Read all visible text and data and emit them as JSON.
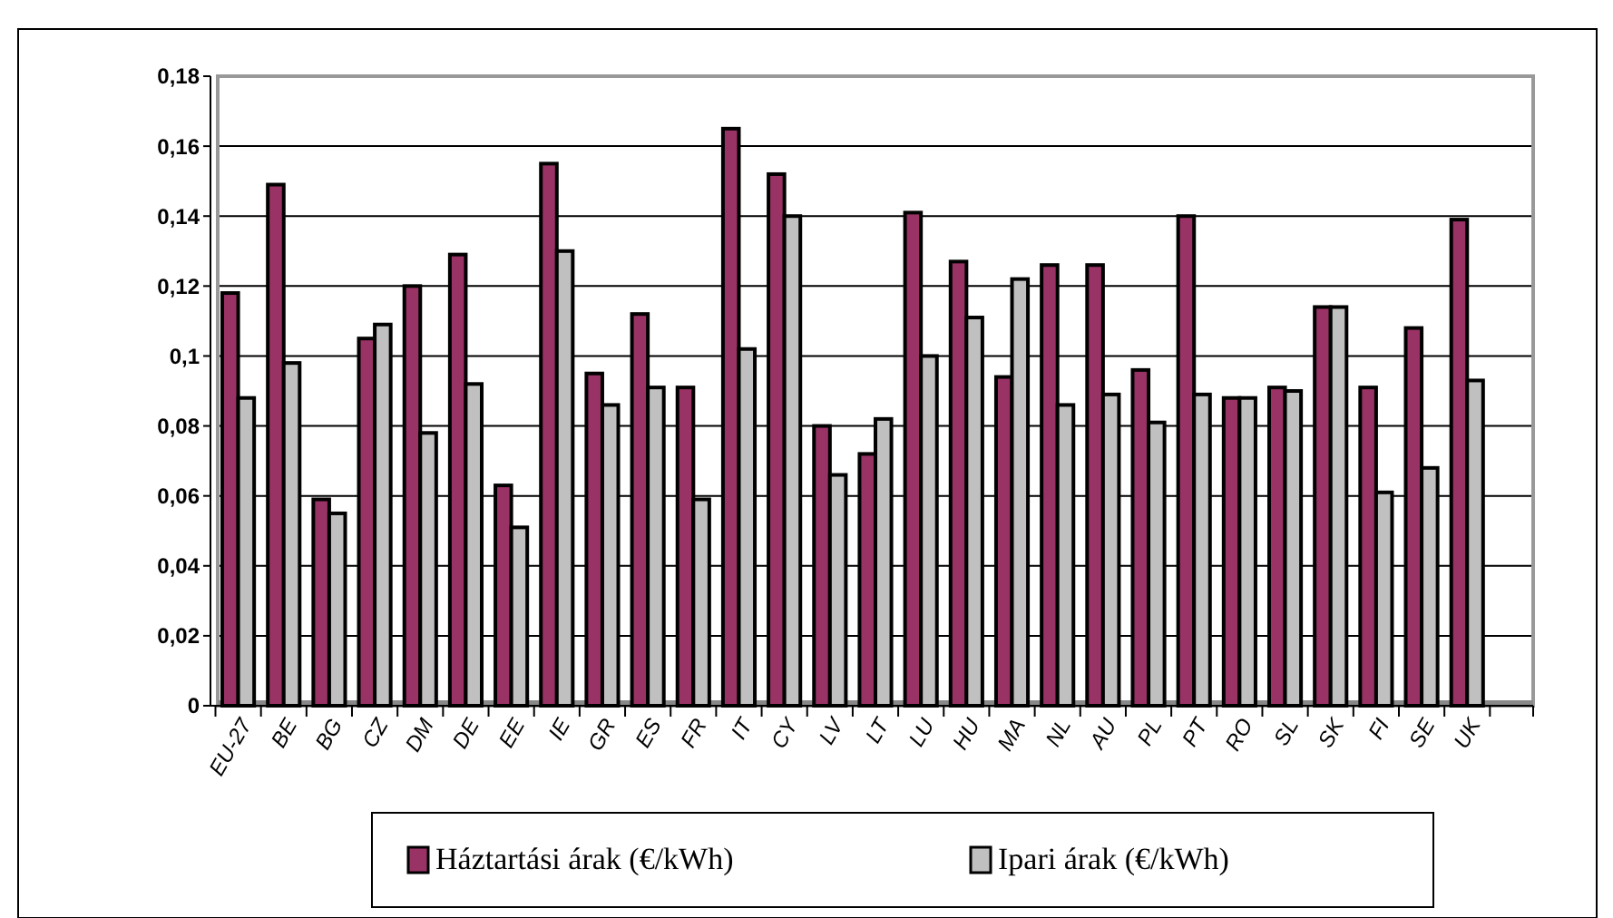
{
  "chart_data": {
    "type": "bar",
    "categories": [
      "EU-27",
      "BE",
      "BG",
      "CZ",
      "DM",
      "DE",
      "EE",
      "IE",
      "GR",
      "ES",
      "FR",
      "IT",
      "CY",
      "LV",
      "LT",
      "LU",
      "HU",
      "MA",
      "NL",
      "AU",
      "PL",
      "PT",
      "RO",
      "SL",
      "SK",
      "FI",
      "SE",
      "UK",
      null
    ],
    "series": [
      {
        "name": "Háztartási árak (€/kWh)",
        "color": "#993366",
        "values": [
          0.118,
          0.149,
          0.059,
          0.105,
          0.12,
          0.129,
          0.063,
          0.155,
          0.095,
          0.112,
          0.091,
          0.165,
          0.152,
          0.08,
          0.072,
          0.141,
          0.127,
          0.094,
          0.126,
          0.126,
          0.096,
          0.14,
          0.088,
          0.091,
          0.114,
          0.091,
          0.108,
          0.139,
          null
        ]
      },
      {
        "name": "Ipari árak (€/kWh)",
        "color": "#c0c0c0",
        "values": [
          0.088,
          0.098,
          0.055,
          0.109,
          0.078,
          0.092,
          0.051,
          0.13,
          0.086,
          0.091,
          0.059,
          0.102,
          0.14,
          0.066,
          0.082,
          0.1,
          0.111,
          0.122,
          0.086,
          0.089,
          0.081,
          0.089,
          0.088,
          0.09,
          0.114,
          0.061,
          0.068,
          0.093,
          null
        ]
      }
    ],
    "ylim": [
      0,
      0.18
    ],
    "yticks": [
      {
        "value": 0,
        "label": "0"
      },
      {
        "value": 0.02,
        "label": "0,02"
      },
      {
        "value": 0.04,
        "label": "0,04"
      },
      {
        "value": 0.06,
        "label": "0,06"
      },
      {
        "value": 0.08,
        "label": "0,08"
      },
      {
        "value": 0.1,
        "label": "0,1"
      },
      {
        "value": 0.12,
        "label": "0,12"
      },
      {
        "value": 0.14,
        "label": "0,14"
      },
      {
        "value": 0.16,
        "label": "0,16"
      },
      {
        "value": 0.18,
        "label": "0,18"
      }
    ],
    "grid": "y",
    "legend": "bottom"
  }
}
